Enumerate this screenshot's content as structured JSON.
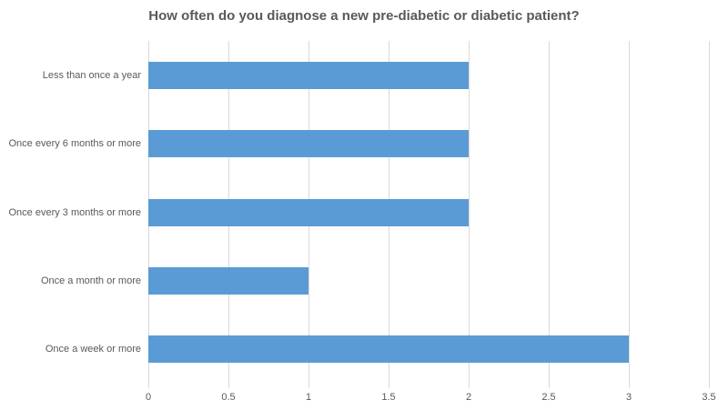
{
  "chart_data": {
    "type": "bar",
    "orientation": "horizontal",
    "title": "How often do you diagnose a new pre-diabetic or diabetic patient?",
    "categories": [
      "Less than once a year",
      "Once every 6 months or more",
      "Once every 3 months or more",
      "Once a month or more",
      "Once a week or more"
    ],
    "values": [
      2,
      2,
      2,
      1,
      3
    ],
    "xlabel": "",
    "ylabel": "",
    "xlim": [
      0,
      3.5
    ],
    "xticks": [
      0,
      0.5,
      1,
      1.5,
      2,
      2.5,
      3,
      3.5
    ],
    "xtick_labels": [
      "0",
      "0.5",
      "1",
      "1.5",
      "2",
      "2.5",
      "3",
      "3.5"
    ],
    "grid": true,
    "legend": false,
    "colors": {
      "bar": "#5b9bd5",
      "title": "#595959",
      "label": "#595959",
      "gridline": "#d9d9d9",
      "background": "#ffffff"
    }
  }
}
